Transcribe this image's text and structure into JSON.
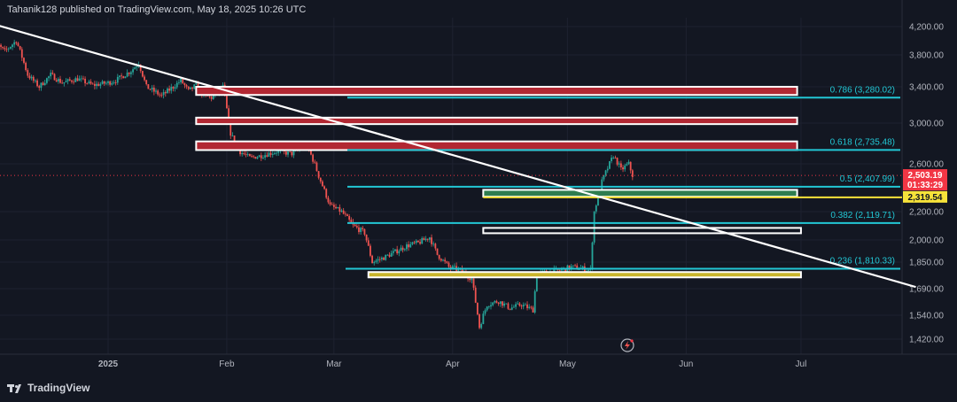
{
  "header": {
    "text": "Tahanik128 published on TradingView.com, May 18, 2025 10:26 UTC"
  },
  "footer": {
    "logo_text": "TradingView"
  },
  "colors": {
    "background": "#131722",
    "up": "#26a69a",
    "down": "#ef5350",
    "fib_line": "#22c7d5",
    "trendline": "#ffffff",
    "zone_red": "#b22833",
    "zone_green": "#2e7d4f",
    "zone_yellow": "#c9b52c",
    "current_price": "#f23645",
    "support_price": "#f7e33a"
  },
  "chart_data": {
    "type": "candlestick",
    "title": "",
    "y_axis": {
      "position": "right",
      "ticks": [
        "4,200.00",
        "3,800.00",
        "3,400.00",
        "3,000.00",
        "2,600.00",
        "2,200.00",
        "2,000.00",
        "1,850.00",
        "1,690.00",
        "1,540.00",
        "1,420.00"
      ]
    },
    "x_axis": {
      "ticks": [
        "2025",
        "Feb",
        "Mar",
        "Apr",
        "May",
        "Jun",
        "Jul"
      ]
    },
    "price_path": [
      [
        "2024-12-01",
        4050
      ],
      [
        "2024-12-05",
        3850
      ],
      [
        "2024-12-08",
        4000
      ],
      [
        "2024-12-11",
        3550
      ],
      [
        "2024-12-14",
        3400
      ],
      [
        "2024-12-17",
        3550
      ],
      [
        "2024-12-20",
        3450
      ],
      [
        "2024-12-24",
        3500
      ],
      [
        "2024-12-28",
        3420
      ],
      [
        "2025-01-01",
        3450
      ],
      [
        "2025-01-03",
        3480
      ],
      [
        "2025-01-07",
        3600
      ],
      [
        "2025-01-09",
        3700
      ],
      [
        "2025-01-11",
        3400
      ],
      [
        "2025-01-15",
        3300
      ],
      [
        "2025-01-18",
        3400
      ],
      [
        "2025-01-20",
        3480
      ],
      [
        "2025-01-22",
        3350
      ],
      [
        "2025-01-24",
        3420
      ],
      [
        "2025-01-26",
        3300
      ],
      [
        "2025-01-28",
        3280
      ],
      [
        "2025-01-31",
        3400
      ],
      [
        "2025-02-02",
        2900
      ],
      [
        "2025-02-04",
        2730
      ],
      [
        "2025-02-07",
        2660
      ],
      [
        "2025-02-10",
        2680
      ],
      [
        "2025-02-14",
        2720
      ],
      [
        "2025-02-18",
        2700
      ],
      [
        "2025-02-22",
        2780
      ],
      [
        "2025-02-25",
        2500
      ],
      [
        "2025-02-28",
        2250
      ],
      [
        "2025-03-03",
        2200
      ],
      [
        "2025-03-06",
        2100
      ],
      [
        "2025-03-09",
        2050
      ],
      [
        "2025-03-11",
        1850
      ],
      [
        "2025-03-14",
        1880
      ],
      [
        "2025-03-17",
        1920
      ],
      [
        "2025-03-20",
        1960
      ],
      [
        "2025-03-23",
        1980
      ],
      [
        "2025-03-26",
        2020
      ],
      [
        "2025-03-28",
        1900
      ],
      [
        "2025-03-31",
        1820
      ],
      [
        "2025-04-03",
        1800
      ],
      [
        "2025-04-06",
        1750
      ],
      [
        "2025-04-08",
        1480
      ],
      [
        "2025-04-10",
        1600
      ],
      [
        "2025-04-13",
        1620
      ],
      [
        "2025-04-16",
        1580
      ],
      [
        "2025-04-19",
        1600
      ],
      [
        "2025-04-22",
        1570
      ],
      [
        "2025-04-23",
        1780
      ],
      [
        "2025-04-26",
        1790
      ],
      [
        "2025-04-29",
        1800
      ],
      [
        "2025-05-02",
        1820
      ],
      [
        "2025-05-05",
        1810
      ],
      [
        "2025-05-07",
        1800
      ],
      [
        "2025-05-08",
        2200
      ],
      [
        "2025-05-10",
        2450
      ],
      [
        "2025-05-13",
        2680
      ],
      [
        "2025-05-15",
        2550
      ],
      [
        "2025-05-17",
        2600
      ],
      [
        "2025-05-18",
        2503
      ]
    ],
    "fib_levels": [
      {
        "label": "0.786 (3,280.02)",
        "price": 3280.02
      },
      {
        "label": "0.618 (2,735.48)",
        "price": 2735.48
      },
      {
        "label": "0.5 (2,407.99)",
        "price": 2407.99
      },
      {
        "label": "0.382 (2,119.71)",
        "price": 2119.71
      },
      {
        "label": "0.236 (1,810.33)",
        "price": 1810.33
      }
    ],
    "zones": [
      {
        "color": "red",
        "from": "2025-01-24",
        "to": "2025-06-30",
        "top": 3400,
        "bottom": 3310
      },
      {
        "color": "red",
        "from": "2025-01-24",
        "to": "2025-06-30",
        "top": 3060,
        "bottom": 2990
      },
      {
        "color": "red",
        "from": "2025-01-24",
        "to": "2025-06-30",
        "top": 2820,
        "bottom": 2735
      },
      {
        "color": "green",
        "from": "2025-04-09",
        "to": "2025-06-30",
        "top": 2382,
        "bottom": 2325
      },
      {
        "color": "none",
        "from": "2025-04-09",
        "to": "2025-07-01",
        "top": 2085,
        "bottom": 2060
      },
      {
        "color": "yellow",
        "from": "2025-03-10",
        "to": "2025-07-01",
        "top": 1790,
        "bottom": 1760
      }
    ],
    "trendline": {
      "from": [
        "2024-12-01",
        4250
      ],
      "to": [
        "2025-07-31",
        1700
      ]
    },
    "support_line": {
      "price": 2319.54,
      "from": "2025-04-09"
    },
    "current_price": {
      "value": "2,503.19",
      "countdown": "01:33:29",
      "price": 2503.19
    },
    "support_price": {
      "value": "2,319.54"
    }
  }
}
